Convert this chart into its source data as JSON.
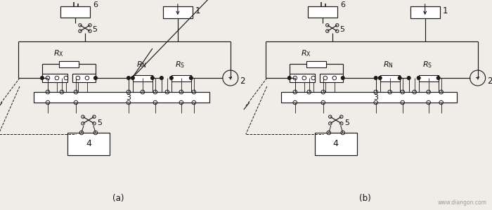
{
  "bg_color": "#f0ede8",
  "line_color": "#1a1a1a",
  "text_color": "#111111",
  "label_a": "(a)",
  "label_b": "(b)",
  "watermark": "www.diangon.com",
  "labels": {
    "1": "1",
    "2": "2",
    "3": "3",
    "4": "4",
    "5": "5",
    "6": "6",
    "RX": "$R_{\\mathrm{X}}$",
    "RN": "$R_{\\mathrm{N}}$",
    "RS": "$R_{\\mathrm{S}}$"
  }
}
